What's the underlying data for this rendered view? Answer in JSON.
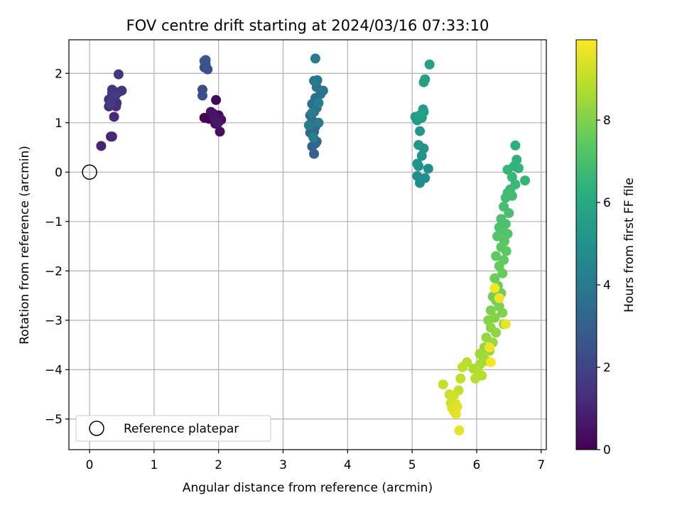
{
  "chart_data": {
    "type": "scatter",
    "title": "FOV centre drift starting at 2024/03/16 07:33:10",
    "xlabel": "Angular distance from reference (arcmin)",
    "ylabel": "Rotation from reference (arcmin)",
    "xlim": [
      -0.32,
      7.08
    ],
    "ylim": [
      -5.62,
      2.68
    ],
    "xticks": [
      "0",
      "1",
      "2",
      "3",
      "4",
      "5",
      "6",
      "7"
    ],
    "yticks": [
      "−5",
      "−4",
      "−3",
      "−2",
      "−1",
      "0",
      "1",
      "2"
    ],
    "grid": true,
    "legend": {
      "placement": "lower-left",
      "label": "Reference platepar"
    },
    "colorbar": {
      "label": "Hours from first FF file",
      "range": [
        0,
        9.95
      ],
      "ticks": [
        "0",
        "2",
        "4",
        "6",
        "8"
      ],
      "colormap": "viridis"
    },
    "reference_point": {
      "x": 0,
      "y": 0
    },
    "points": [
      [
        1.78,
        1.1,
        0.05
      ],
      [
        1.85,
        1.08,
        0.1
      ],
      [
        1.92,
        1.18,
        0.15
      ],
      [
        1.96,
        1.46,
        0.2
      ],
      [
        2.0,
        1.15,
        0.25
      ],
      [
        1.98,
        1.02,
        0.3
      ],
      [
        1.95,
        0.98,
        0.35
      ],
      [
        2.02,
        0.82,
        0.4
      ],
      [
        2.04,
        1.06,
        0.45
      ],
      [
        1.88,
        1.22,
        0.5
      ],
      [
        1.97,
        1.08,
        0.55
      ],
      [
        1.93,
        1.12,
        0.6
      ],
      [
        1.99,
        1.0,
        0.65
      ],
      [
        0.18,
        0.53,
        1.0
      ],
      [
        0.33,
        0.72,
        1.05
      ],
      [
        0.35,
        0.72,
        1.1
      ],
      [
        0.38,
        1.12,
        1.15
      ],
      [
        0.3,
        1.33,
        1.2
      ],
      [
        0.41,
        1.33,
        1.25
      ],
      [
        0.42,
        1.4,
        1.3
      ],
      [
        0.3,
        1.47,
        1.35
      ],
      [
        0.37,
        1.52,
        1.4
      ],
      [
        0.35,
        1.6,
        1.45
      ],
      [
        0.45,
        1.62,
        1.5
      ],
      [
        0.5,
        1.65,
        1.55
      ],
      [
        0.35,
        1.67,
        1.6
      ],
      [
        0.45,
        1.98,
        1.65
      ],
      [
        0.4,
        1.55,
        1.7
      ],
      [
        0.32,
        1.38,
        1.75
      ],
      [
        1.75,
        1.67,
        2.3
      ],
      [
        1.75,
        1.55,
        2.35
      ],
      [
        1.78,
        2.12,
        2.4
      ],
      [
        1.8,
        2.18,
        2.45
      ],
      [
        1.83,
        2.08,
        2.5
      ],
      [
        1.78,
        2.25,
        2.55
      ],
      [
        1.8,
        2.27,
        2.6
      ],
      [
        3.48,
        0.37,
        3.1
      ],
      [
        3.45,
        0.52,
        3.15
      ],
      [
        3.5,
        0.58,
        3.2
      ],
      [
        3.52,
        0.62,
        3.25
      ],
      [
        3.42,
        0.8,
        3.3
      ],
      [
        3.48,
        0.82,
        3.35
      ],
      [
        3.5,
        0.92,
        3.4
      ],
      [
        3.45,
        1.05,
        3.45
      ],
      [
        3.42,
        1.15,
        3.5
      ],
      [
        3.48,
        1.22,
        3.55
      ],
      [
        3.52,
        1.3,
        3.6
      ],
      [
        3.45,
        1.38,
        3.65
      ],
      [
        3.5,
        1.5,
        3.7
      ],
      [
        3.58,
        1.58,
        3.75
      ],
      [
        3.62,
        1.65,
        3.8
      ],
      [
        3.52,
        1.72,
        3.85
      ],
      [
        3.48,
        1.85,
        3.9
      ],
      [
        3.53,
        1.86,
        3.95
      ],
      [
        3.5,
        2.3,
        4.0
      ],
      [
        3.45,
        1.2,
        4.05
      ],
      [
        3.55,
        1.0,
        4.1
      ],
      [
        3.4,
        0.95,
        4.15
      ],
      [
        3.47,
        0.7,
        4.2
      ],
      [
        3.55,
        1.4,
        4.25
      ],
      [
        5.08,
        -0.08,
        4.8
      ],
      [
        5.12,
        -0.22,
        4.85
      ],
      [
        5.2,
        -0.12,
        4.9
      ],
      [
        5.25,
        0.07,
        4.95
      ],
      [
        5.1,
        0.12,
        5.0
      ],
      [
        5.08,
        0.17,
        5.05
      ],
      [
        5.15,
        0.33,
        5.1
      ],
      [
        5.18,
        0.48,
        5.15
      ],
      [
        5.1,
        0.55,
        5.2
      ],
      [
        5.12,
        0.83,
        5.25
      ],
      [
        5.08,
        1.05,
        5.3
      ],
      [
        5.15,
        1.1,
        5.35
      ],
      [
        5.05,
        1.12,
        5.4
      ],
      [
        5.18,
        1.22,
        5.45
      ],
      [
        5.17,
        1.27,
        5.5
      ],
      [
        5.18,
        1.82,
        5.55
      ],
      [
        5.2,
        1.88,
        5.6
      ],
      [
        5.27,
        2.18,
        5.65
      ],
      [
        5.12,
        1.15,
        5.7
      ],
      [
        6.6,
        0.54,
        6.3
      ],
      [
        6.62,
        0.25,
        6.35
      ],
      [
        6.58,
        0.12,
        6.4
      ],
      [
        6.65,
        0.08,
        6.45
      ],
      [
        6.48,
        0.05,
        6.5
      ],
      [
        6.75,
        -0.17,
        6.55
      ],
      [
        6.55,
        -0.1,
        6.6
      ],
      [
        6.6,
        -0.25,
        6.65
      ],
      [
        6.52,
        -0.35,
        6.7
      ],
      [
        6.48,
        -0.42,
        6.75
      ],
      [
        6.55,
        -0.48,
        6.8
      ],
      [
        6.45,
        -0.52,
        6.85
      ],
      [
        6.42,
        -0.7,
        6.9
      ],
      [
        6.5,
        -0.83,
        6.95
      ],
      [
        6.38,
        -0.95,
        7.0
      ],
      [
        6.45,
        -1.05,
        7.05
      ],
      [
        6.35,
        -1.12,
        7.1
      ],
      [
        6.4,
        -1.2,
        7.15
      ],
      [
        6.48,
        -1.25,
        7.2
      ],
      [
        6.32,
        -1.3,
        7.25
      ],
      [
        6.43,
        -1.4,
        7.3
      ],
      [
        6.38,
        -1.52,
        7.35
      ],
      [
        6.46,
        -1.6,
        7.4
      ],
      [
        6.3,
        -1.7,
        7.45
      ],
      [
        6.42,
        -1.78,
        7.5
      ],
      [
        6.35,
        -1.9,
        7.55
      ],
      [
        6.4,
        -2.05,
        7.6
      ],
      [
        6.28,
        -2.15,
        7.65
      ],
      [
        6.33,
        -2.3,
        7.7
      ],
      [
        6.38,
        -2.45,
        7.75
      ],
      [
        6.25,
        -2.52,
        7.8
      ],
      [
        6.3,
        -2.6,
        7.85
      ],
      [
        6.35,
        -2.72,
        7.9
      ],
      [
        6.22,
        -2.8,
        7.95
      ],
      [
        6.4,
        -2.85,
        8.0
      ],
      [
        6.28,
        -2.95,
        8.05
      ],
      [
        6.18,
        -3.0,
        8.1
      ],
      [
        6.42,
        -3.08,
        8.15
      ],
      [
        6.22,
        -3.15,
        8.2
      ],
      [
        6.3,
        -3.25,
        8.25
      ],
      [
        6.15,
        -3.35,
        8.3
      ],
      [
        6.25,
        -3.45,
        8.35
      ],
      [
        6.12,
        -3.55,
        8.4
      ],
      [
        6.2,
        -3.62,
        8.45
      ],
      [
        6.05,
        -3.68,
        8.5
      ],
      [
        6.1,
        -3.75,
        8.55
      ],
      [
        6.15,
        -3.82,
        8.6
      ],
      [
        6.05,
        -3.9,
        8.65
      ],
      [
        5.95,
        -3.98,
        8.7
      ],
      [
        6.02,
        -4.05,
        8.75
      ],
      [
        6.08,
        -4.12,
        8.8
      ],
      [
        5.98,
        -4.18,
        8.85
      ],
      [
        5.85,
        -3.85,
        8.9
      ],
      [
        5.78,
        -3.95,
        8.95
      ],
      [
        5.75,
        -4.18,
        9.0
      ],
      [
        5.72,
        -4.42,
        9.05
      ],
      [
        5.48,
        -4.3,
        9.1
      ],
      [
        5.58,
        -4.5,
        9.15
      ],
      [
        5.62,
        -4.58,
        9.2
      ],
      [
        5.65,
        -4.52,
        9.25
      ],
      [
        5.6,
        -4.68,
        9.3
      ],
      [
        5.68,
        -4.7,
        9.35
      ],
      [
        5.62,
        -4.78,
        9.4
      ],
      [
        5.7,
        -4.75,
        9.45
      ],
      [
        5.65,
        -4.85,
        9.5
      ],
      [
        5.68,
        -4.9,
        9.55
      ],
      [
        5.73,
        -5.23,
        9.6
      ],
      [
        6.45,
        -3.08,
        9.65
      ],
      [
        6.2,
        -3.55,
        9.7
      ],
      [
        6.35,
        -2.55,
        9.75
      ],
      [
        6.28,
        -2.35,
        9.8
      ],
      [
        6.22,
        -3.85,
        9.85
      ]
    ]
  }
}
